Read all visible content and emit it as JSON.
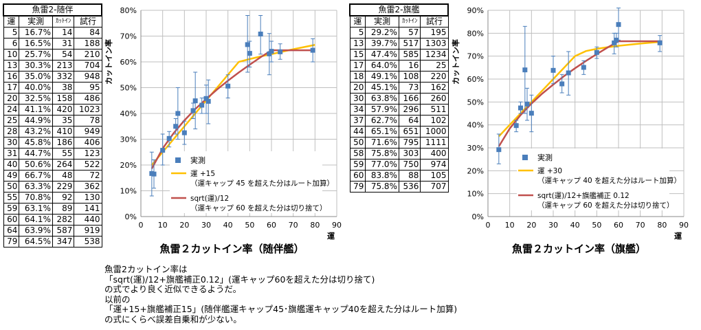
{
  "table_left": {
    "title": "魚雷2-随伴",
    "headers": [
      "運",
      "実測",
      "ｶｯﾄｲﾝ",
      "試行"
    ],
    "rows": [
      [
        "5",
        "16.7%",
        "14",
        "84"
      ],
      [
        "6",
        "16.5%",
        "31",
        "188"
      ],
      [
        "10",
        "25.7%",
        "54",
        "210"
      ],
      [
        "13",
        "30.3%",
        "213",
        "704"
      ],
      [
        "16",
        "35.0%",
        "332",
        "948"
      ],
      [
        "17",
        "40.0%",
        "38",
        "95"
      ],
      [
        "20",
        "32.5%",
        "158",
        "486"
      ],
      [
        "24",
        "41.1%",
        "420",
        "1023"
      ],
      [
        "25",
        "44.9%",
        "35",
        "78"
      ],
      [
        "28",
        "43.2%",
        "410",
        "949"
      ],
      [
        "30",
        "45.8%",
        "186",
        "406"
      ],
      [
        "31",
        "44.7%",
        "55",
        "123"
      ],
      [
        "40",
        "50.6%",
        "264",
        "522"
      ],
      [
        "49",
        "66.7%",
        "48",
        "72"
      ],
      [
        "50",
        "63.3%",
        "229",
        "362"
      ],
      [
        "55",
        "70.8%",
        "92",
        "130"
      ],
      [
        "59",
        "63.1%",
        "89",
        "141"
      ],
      [
        "60",
        "64.1%",
        "282",
        "440"
      ],
      [
        "64",
        "63.9%",
        "587",
        "919"
      ],
      [
        "79",
        "64.5%",
        "347",
        "538"
      ]
    ]
  },
  "table_right": {
    "title": "魚雷2-旗艦",
    "headers": [
      "運",
      "実測",
      "ｶｯﾄｲﾝ",
      "試行"
    ],
    "rows": [
      [
        "5",
        "29.2%",
        "57",
        "195"
      ],
      [
        "13",
        "39.7%",
        "517",
        "1303"
      ],
      [
        "15",
        "47.4%",
        "585",
        "1234"
      ],
      [
        "17",
        "64.0%",
        "16",
        "25"
      ],
      [
        "18",
        "49.1%",
        "108",
        "220"
      ],
      [
        "20",
        "45.1%",
        "73",
        "162"
      ],
      [
        "30",
        "63.8%",
        "166",
        "260"
      ],
      [
        "34",
        "57.9%",
        "296",
        "511"
      ],
      [
        "37",
        "62.7%",
        "64",
        "102"
      ],
      [
        "44",
        "65.1%",
        "651",
        "1000"
      ],
      [
        "50",
        "71.6%",
        "795",
        "1111"
      ],
      [
        "58",
        "75.8%",
        "303",
        "400"
      ],
      [
        "59",
        "77.0%",
        "750",
        "974"
      ],
      [
        "60",
        "83.8%",
        "88",
        "105"
      ],
      [
        "79",
        "75.8%",
        "536",
        "707"
      ]
    ]
  },
  "chart_data": [
    {
      "type": "scatter",
      "title": "魚雷２カットイン率（随伴艦）",
      "xlabel": "運",
      "ylabel": "カットイン率",
      "xlim": [
        0,
        90
      ],
      "ylim": [
        0,
        80
      ],
      "xticks": [
        0,
        10,
        20,
        30,
        40,
        50,
        60,
        70,
        80,
        90
      ],
      "yticks": [
        0,
        10,
        20,
        30,
        40,
        50,
        60,
        70,
        80
      ],
      "points": [
        {
          "x": 5,
          "y": 16.7,
          "lo": 8,
          "hi": 25
        },
        {
          "x": 6,
          "y": 16.5,
          "lo": 11,
          "hi": 22
        },
        {
          "x": 10,
          "y": 25.7,
          "lo": 20,
          "hi": 32
        },
        {
          "x": 13,
          "y": 30.3,
          "lo": 27,
          "hi": 33
        },
        {
          "x": 16,
          "y": 35.0,
          "lo": 32,
          "hi": 38
        },
        {
          "x": 17,
          "y": 40.0,
          "lo": 30,
          "hi": 50
        },
        {
          "x": 20,
          "y": 32.5,
          "lo": 28,
          "hi": 37
        },
        {
          "x": 24,
          "y": 41.1,
          "lo": 38,
          "hi": 44
        },
        {
          "x": 25,
          "y": 44.9,
          "lo": 34,
          "hi": 56
        },
        {
          "x": 28,
          "y": 43.2,
          "lo": 40,
          "hi": 46
        },
        {
          "x": 30,
          "y": 45.8,
          "lo": 40,
          "hi": 51
        },
        {
          "x": 31,
          "y": 44.7,
          "lo": 36,
          "hi": 53
        },
        {
          "x": 40,
          "y": 50.6,
          "lo": 46,
          "hi": 55
        },
        {
          "x": 49,
          "y": 66.7,
          "lo": 56,
          "hi": 78
        },
        {
          "x": 50,
          "y": 63.3,
          "lo": 58,
          "hi": 68
        },
        {
          "x": 55,
          "y": 70.8,
          "lo": 63,
          "hi": 78
        },
        {
          "x": 59,
          "y": 63.1,
          "lo": 55,
          "hi": 71
        },
        {
          "x": 60,
          "y": 64.1,
          "lo": 60,
          "hi": 68
        },
        {
          "x": 64,
          "y": 63.9,
          "lo": 61,
          "hi": 67
        },
        {
          "x": 79,
          "y": 64.5,
          "lo": 60,
          "hi": 69
        }
      ],
      "series": [
        {
          "name": "実測",
          "color": "#4a7ebb"
        },
        {
          "name": "運 +15",
          "name2": "（運キャップ 45 を超えた分はルート加算）",
          "color": "#ffc000",
          "x": [
            5,
            10,
            15,
            20,
            25,
            30,
            35,
            40,
            45,
            50,
            55,
            60,
            70,
            80
          ],
          "y": [
            20,
            25,
            30,
            35,
            40,
            45,
            50,
            55,
            60,
            61.1,
            62.1,
            63,
            64.9,
            66.6
          ]
        },
        {
          "name": "sqrt(運)/12",
          "name2": "（運キャップ 60 を超えた分は切り捨て）",
          "color": "#c0504d",
          "x": [
            5,
            10,
            15,
            20,
            25,
            30,
            35,
            40,
            45,
            50,
            55,
            60,
            70,
            80
          ],
          "y": [
            18.6,
            26.4,
            32.3,
            37.3,
            41.7,
            45.6,
            49.3,
            52.7,
            55.9,
            58.9,
            61.8,
            64.5,
            64.5,
            64.5
          ]
        }
      ]
    },
    {
      "type": "scatter",
      "title": "魚雷２カットイン率（旗艦）",
      "xlabel": "運",
      "ylabel": "カットイン率",
      "xlim": [
        0,
        90
      ],
      "ylim": [
        0,
        90
      ],
      "xticks": [
        0,
        10,
        20,
        30,
        40,
        50,
        60,
        70,
        80,
        90
      ],
      "yticks": [
        0,
        10,
        20,
        30,
        40,
        50,
        60,
        70,
        80,
        90
      ],
      "points": [
        {
          "x": 5,
          "y": 29.2,
          "lo": 23,
          "hi": 36
        },
        {
          "x": 13,
          "y": 39.7,
          "lo": 37,
          "hi": 42
        },
        {
          "x": 15,
          "y": 47.4,
          "lo": 45,
          "hi": 50
        },
        {
          "x": 17,
          "y": 64.0,
          "lo": 45,
          "hi": 83
        },
        {
          "x": 18,
          "y": 49.1,
          "lo": 42,
          "hi": 56
        },
        {
          "x": 20,
          "y": 45.1,
          "lo": 37,
          "hi": 53
        },
        {
          "x": 30,
          "y": 63.8,
          "lo": 58,
          "hi": 70
        },
        {
          "x": 34,
          "y": 57.9,
          "lo": 54,
          "hi": 62
        },
        {
          "x": 37,
          "y": 62.7,
          "lo": 53,
          "hi": 72
        },
        {
          "x": 44,
          "y": 65.1,
          "lo": 62,
          "hi": 68
        },
        {
          "x": 50,
          "y": 71.6,
          "lo": 69,
          "hi": 74
        },
        {
          "x": 58,
          "y": 75.8,
          "lo": 71,
          "hi": 80
        },
        {
          "x": 59,
          "y": 77.0,
          "lo": 74,
          "hi": 80
        },
        {
          "x": 60,
          "y": 83.8,
          "lo": 77,
          "hi": 91
        },
        {
          "x": 79,
          "y": 75.8,
          "lo": 72,
          "hi": 79
        }
      ],
      "series": [
        {
          "name": "実測",
          "color": "#4a7ebb"
        },
        {
          "name": "運 +30",
          "name2": "（運キャップ 40 を超えた分はルート加算）",
          "color": "#ffc000",
          "x": [
            5,
            10,
            15,
            20,
            25,
            30,
            35,
            40,
            45,
            50,
            55,
            60,
            70,
            80
          ],
          "y": [
            35,
            40,
            45,
            50,
            55,
            60,
            65,
            70,
            72.2,
            73.2,
            73.9,
            74.5,
            75.5,
            76.3
          ]
        },
        {
          "name": "sqrt(運)/12+旗艦補正 0.12",
          "name2": "（運キャップ 60 を超えた分は切り捨て）",
          "color": "#c0504d",
          "x": [
            5,
            10,
            15,
            20,
            25,
            30,
            35,
            40,
            45,
            50,
            55,
            60,
            70,
            80
          ],
          "y": [
            30.6,
            38.4,
            44.3,
            49.3,
            53.7,
            57.6,
            61.3,
            64.7,
            67.9,
            70.9,
            73.8,
            76.5,
            76.5,
            76.5
          ]
        }
      ]
    }
  ],
  "note": [
    "魚雷2カットイン率は",
    "「sqrt(運)/12+旗艦補正0.12」(運キャップ60を超えた分は切り捨て)",
    "の式でより良く近似できるようだ。",
    "以前の",
    "「運+15+旗艦補正15」(随伴艦運キャップ45･旗艦運キャップ40を超えた分はルート加算)",
    "の式にくらべ誤差自乗和が少ない。"
  ]
}
